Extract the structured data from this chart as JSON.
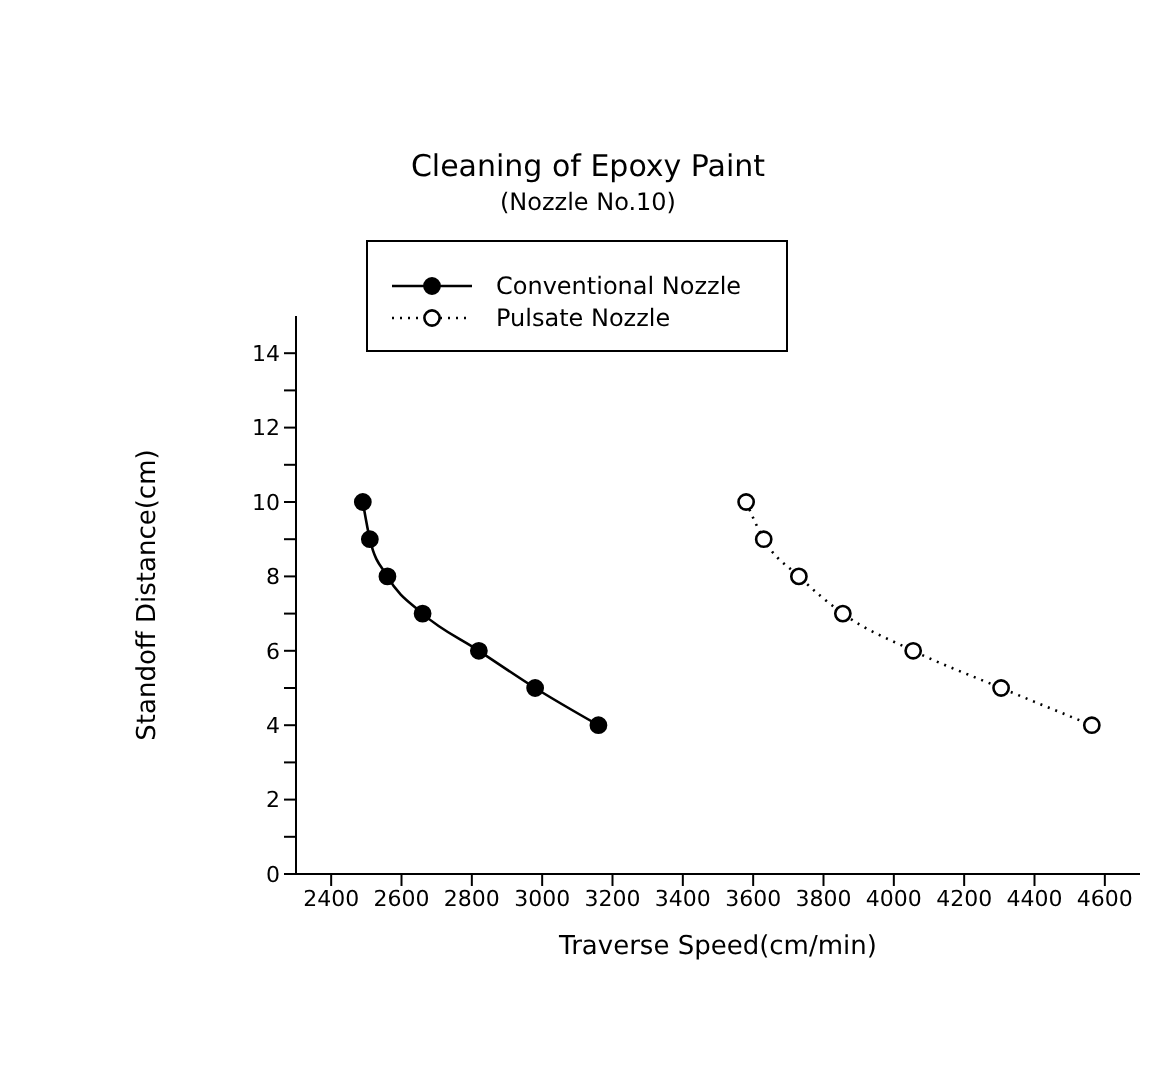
{
  "chart_data": {
    "type": "line",
    "title": "Cleaning of Epoxy Paint",
    "subtitle": "(Nozzle No.10)",
    "xlabel": "Traverse Speed(cm/min)",
    "ylabel": "Standoff Distance(cm)",
    "xlim": [
      2300,
      4700
    ],
    "xticks": [
      2400,
      2600,
      2800,
      3000,
      3200,
      3400,
      3600,
      3800,
      4000,
      4200,
      4400,
      4600
    ],
    "ylim": [
      0,
      15
    ],
    "yticks": [
      0,
      {
        "value": 1,
        "label": null
      },
      2,
      {
        "value": 3,
        "label": null
      },
      4,
      {
        "value": 5,
        "label": null
      },
      6,
      {
        "value": 7,
        "label": null
      },
      8,
      {
        "value": 9,
        "label": null
      },
      10,
      {
        "value": 11,
        "label": null
      },
      12,
      {
        "value": 13,
        "label": null
      },
      14
    ],
    "legend": "top",
    "grid": false,
    "marker": "circle",
    "series": [
      {
        "name": "Conventional Nozzle",
        "color": "#000000",
        "line_style": "solid",
        "x": [
          2490,
          2510,
          2560,
          2660,
          2820,
          2980,
          3160
        ],
        "values": [
          10,
          9,
          8,
          7,
          6,
          5,
          4
        ]
      },
      {
        "name": "Pulsate Nozzle",
        "color": "#000000",
        "line_style": "dotted",
        "x": [
          3580,
          3630,
          3730,
          3855,
          4055,
          4305,
          4563
        ],
        "values": [
          10,
          9,
          8,
          7,
          6,
          5,
          4
        ]
      }
    ]
  }
}
